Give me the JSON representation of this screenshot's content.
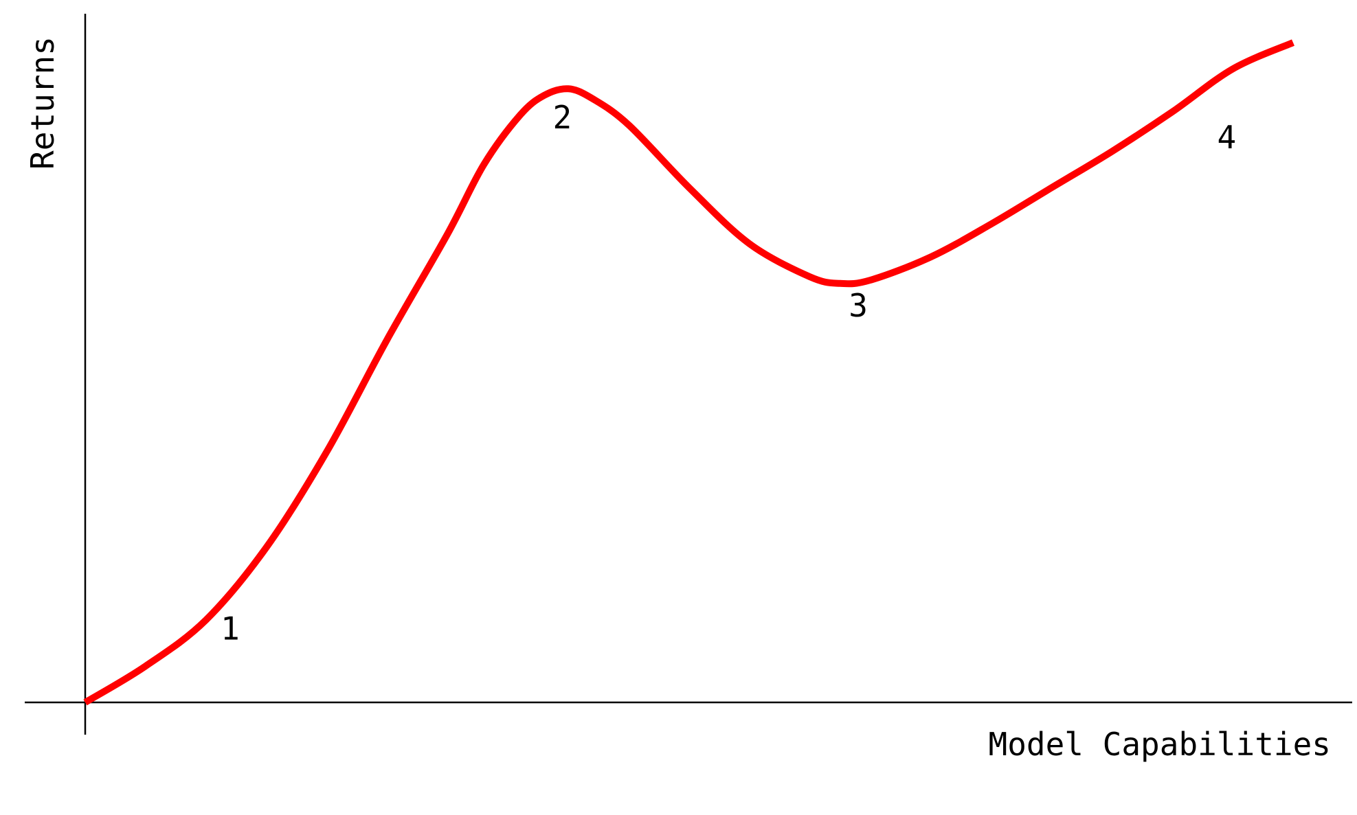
{
  "chart_data": {
    "type": "line",
    "title": "",
    "xlabel": "Model Capabilities",
    "ylabel": "Returns",
    "xlim": [
      -0.05,
      1.05
    ],
    "ylim": [
      -0.05,
      1.0
    ],
    "grid": false,
    "legend": "none",
    "ticks": "none",
    "series": [
      {
        "color": "#ff0000",
        "x": [
          0.0,
          0.05,
          0.1,
          0.15,
          0.2,
          0.25,
          0.3,
          0.33,
          0.36,
          0.38,
          0.4,
          0.42,
          0.45,
          0.5,
          0.55,
          0.6,
          0.625,
          0.65,
          0.7,
          0.75,
          0.8,
          0.85,
          0.9,
          0.95,
          1.0
        ],
        "y": [
          0.0,
          0.055,
          0.125,
          0.235,
          0.38,
          0.55,
          0.71,
          0.815,
          0.89,
          0.92,
          0.93,
          0.915,
          0.875,
          0.78,
          0.695,
          0.645,
          0.635,
          0.64,
          0.675,
          0.725,
          0.78,
          0.835,
          0.895,
          0.96,
          1.0
        ]
      }
    ],
    "annotations": [
      {
        "text": "1",
        "x": 0.12,
        "y": 0.095
      },
      {
        "text": "2",
        "x": 0.395,
        "y": 0.87
      },
      {
        "text": "3",
        "x": 0.64,
        "y": 0.585
      },
      {
        "text": "4",
        "x": 0.945,
        "y": 0.84
      }
    ]
  }
}
